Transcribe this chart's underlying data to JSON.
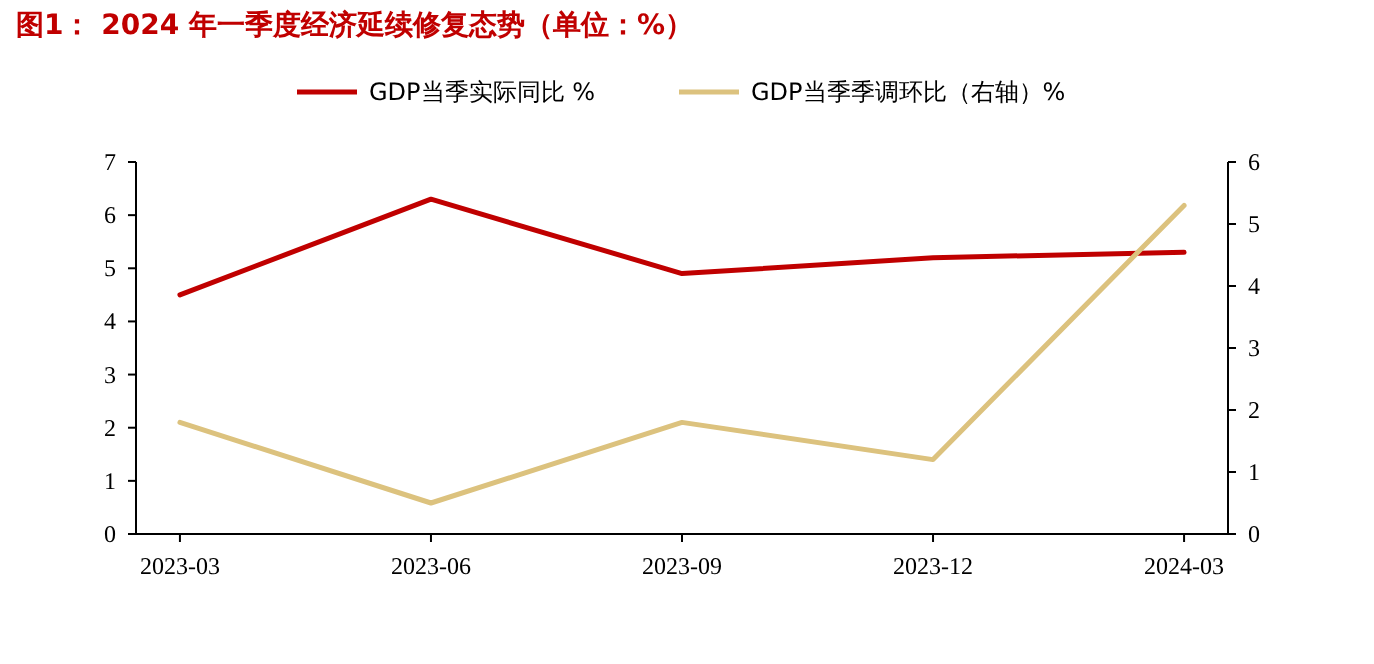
{
  "chart_data": {
    "type": "line",
    "title": "图1：  2024 年一季度经济延续修复态势（单位：%）",
    "categories": [
      "2023-03",
      "2023-06",
      "2023-09",
      "2023-12",
      "2024-03"
    ],
    "series": [
      {
        "name": "GDP当季实际同比 %",
        "color": "#c00000",
        "values": [
          4.5,
          6.3,
          4.9,
          5.2,
          5.3
        ]
      },
      {
        "name": "GDP当季季调环比（右轴）%",
        "color": "#dcc27e",
        "axis": "y2",
        "values": [
          1.8,
          0.5,
          1.8,
          1.2,
          5.3
        ]
      }
    ],
    "ylim": [
      0,
      7
    ],
    "yticks": [
      0,
      1,
      2,
      3,
      4,
      5,
      6,
      7
    ],
    "y2lim": [
      0,
      6
    ],
    "y2ticks": [
      0,
      1,
      2,
      3,
      4,
      5,
      6
    ],
    "grid": false,
    "legend": "top",
    "marker": "none",
    "line_style": "solid"
  }
}
